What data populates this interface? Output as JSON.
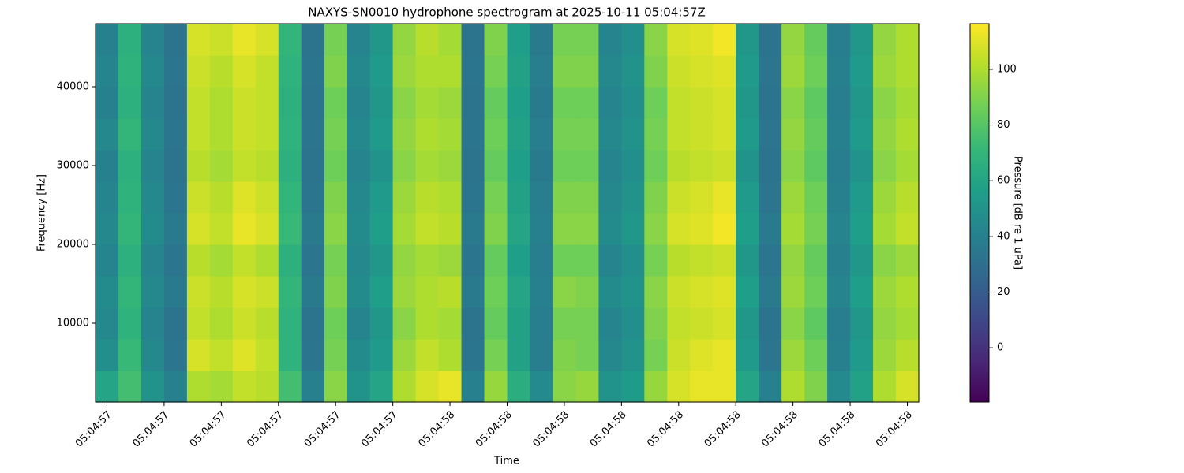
{
  "chart_data": {
    "type": "heatmap",
    "title": "NAXYS-SN0010 hydrophone spectrogram at 2025-10-11 05:04:57Z",
    "xlabel": "Time",
    "ylabel": "Frequency [Hz]",
    "colorbar_label": "Pressure [dB re 1 uPa]",
    "colormap": "viridis",
    "x": [
      57.4,
      57.44,
      57.48,
      57.52,
      57.56,
      57.6,
      57.64,
      57.68,
      57.72,
      57.76,
      57.8,
      57.84,
      57.88,
      57.92,
      57.96,
      58.0,
      58.04,
      58.08,
      58.12,
      58.16,
      58.2,
      58.24,
      58.28,
      58.32,
      58.36,
      58.4,
      58.44,
      58.48,
      58.52,
      58.56,
      58.6,
      58.64,
      58.68,
      58.72,
      58.76,
      58.8
    ],
    "y": [
      2000,
      6000,
      10000,
      14000,
      18000,
      22000,
      26000,
      30000,
      34000,
      38000,
      42000,
      46000
    ],
    "z": [
      [
        60,
        75,
        50,
        40,
        100,
        98,
        104,
        102,
        75,
        40,
        92,
        50,
        60,
        100,
        108,
        112,
        40,
        95,
        65,
        45,
        92,
        95,
        50,
        55,
        95,
        108,
        112,
        112,
        60,
        40,
        100,
        90,
        45,
        58,
        100,
        108
      ],
      [
        48,
        72,
        44,
        34,
        108,
        104,
        110,
        104,
        68,
        34,
        88,
        46,
        54,
        96,
        104,
        100,
        34,
        88,
        58,
        38,
        90,
        88,
        44,
        50,
        88,
        106,
        110,
        112,
        54,
        34,
        96,
        86,
        40,
        54,
        96,
        102
      ],
      [
        44,
        68,
        42,
        32,
        104,
        100,
        106,
        102,
        68,
        32,
        86,
        42,
        52,
        92,
        100,
        98,
        32,
        84,
        58,
        38,
        88,
        88,
        42,
        48,
        90,
        104,
        106,
        108,
        52,
        32,
        92,
        82,
        38,
        52,
        94,
        98
      ],
      [
        46,
        70,
        44,
        36,
        106,
        102,
        108,
        106,
        70,
        36,
        90,
        46,
        56,
        96,
        100,
        102,
        36,
        86,
        60,
        40,
        92,
        90,
        46,
        50,
        92,
        106,
        108,
        110,
        56,
        36,
        96,
        86,
        42,
        56,
        96,
        100
      ],
      [
        42,
        66,
        42,
        34,
        102,
        98,
        104,
        100,
        66,
        34,
        88,
        44,
        52,
        94,
        98,
        96,
        34,
        84,
        56,
        38,
        86,
        86,
        42,
        48,
        88,
        102,
        104,
        106,
        52,
        34,
        94,
        84,
        40,
        52,
        92,
        96
      ],
      [
        44,
        70,
        46,
        36,
        108,
        104,
        112,
        108,
        72,
        36,
        92,
        46,
        56,
        98,
        104,
        102,
        36,
        90,
        60,
        40,
        92,
        92,
        46,
        52,
        92,
        108,
        110,
        114,
        56,
        36,
        98,
        88,
        42,
        56,
        98,
        104
      ],
      [
        42,
        68,
        44,
        34,
        106,
        102,
        110,
        106,
        70,
        34,
        90,
        44,
        54,
        96,
        102,
        100,
        34,
        88,
        58,
        38,
        90,
        90,
        44,
        50,
        90,
        106,
        108,
        112,
        54,
        34,
        96,
        86,
        40,
        54,
        96,
        102
      ],
      [
        40,
        66,
        42,
        32,
        102,
        98,
        104,
        102,
        66,
        32,
        86,
        42,
        50,
        92,
        98,
        96,
        32,
        84,
        56,
        36,
        86,
        86,
        42,
        48,
        86,
        102,
        104,
        106,
        50,
        32,
        92,
        82,
        38,
        50,
        92,
        98
      ],
      [
        44,
        70,
        44,
        34,
        104,
        100,
        106,
        104,
        68,
        34,
        88,
        44,
        54,
        94,
        100,
        98,
        34,
        86,
        58,
        38,
        88,
        88,
        44,
        50,
        88,
        104,
        106,
        108,
        54,
        34,
        94,
        84,
        40,
        54,
        94,
        100
      ],
      [
        40,
        66,
        42,
        32,
        104,
        100,
        106,
        104,
        66,
        32,
        86,
        42,
        52,
        92,
        98,
        96,
        32,
        84,
        56,
        36,
        86,
        86,
        42,
        48,
        86,
        104,
        106,
        108,
        52,
        32,
        92,
        82,
        38,
        52,
        92,
        98
      ],
      [
        42,
        68,
        44,
        34,
        106,
        102,
        108,
        104,
        68,
        34,
        90,
        44,
        54,
        96,
        100,
        100,
        34,
        88,
        58,
        38,
        90,
        90,
        44,
        50,
        90,
        106,
        108,
        110,
        54,
        34,
        96,
        86,
        40,
        54,
        96,
        100
      ],
      [
        40,
        66,
        42,
        32,
        108,
        106,
        112,
        108,
        70,
        32,
        88,
        42,
        52,
        94,
        102,
        98,
        32,
        90,
        56,
        36,
        88,
        88,
        42,
        48,
        92,
        108,
        110,
        114,
        52,
        32,
        94,
        84,
        38,
        52,
        94,
        100
      ]
    ],
    "xlim": [
      57.38,
      58.82
    ],
    "xticks": [
      {
        "value": 57.4,
        "label": "05:04:57"
      },
      {
        "value": 57.5,
        "label": "05:04:57"
      },
      {
        "value": 57.6,
        "label": "05:04:57"
      },
      {
        "value": 57.7,
        "label": "05:04:57"
      },
      {
        "value": 57.8,
        "label": "05:04:57"
      },
      {
        "value": 57.9,
        "label": "05:04:57"
      },
      {
        "value": 58.0,
        "label": "05:04:58"
      },
      {
        "value": 58.1,
        "label": "05:04:58"
      },
      {
        "value": 58.2,
        "label": "05:04:58"
      },
      {
        "value": 58.3,
        "label": "05:04:58"
      },
      {
        "value": 58.4,
        "label": "05:04:58"
      },
      {
        "value": 58.5,
        "label": "05:04:58"
      },
      {
        "value": 58.6,
        "label": "05:04:58"
      },
      {
        "value": 58.7,
        "label": "05:04:58"
      },
      {
        "value": 58.8,
        "label": "05:04:58"
      }
    ],
    "ylim": [
      0,
      48000
    ],
    "yticks": [
      10000,
      20000,
      30000,
      40000
    ],
    "zlim": [
      -19.5,
      116.4
    ],
    "zticks": [
      0,
      20,
      40,
      60,
      80,
      100
    ]
  }
}
